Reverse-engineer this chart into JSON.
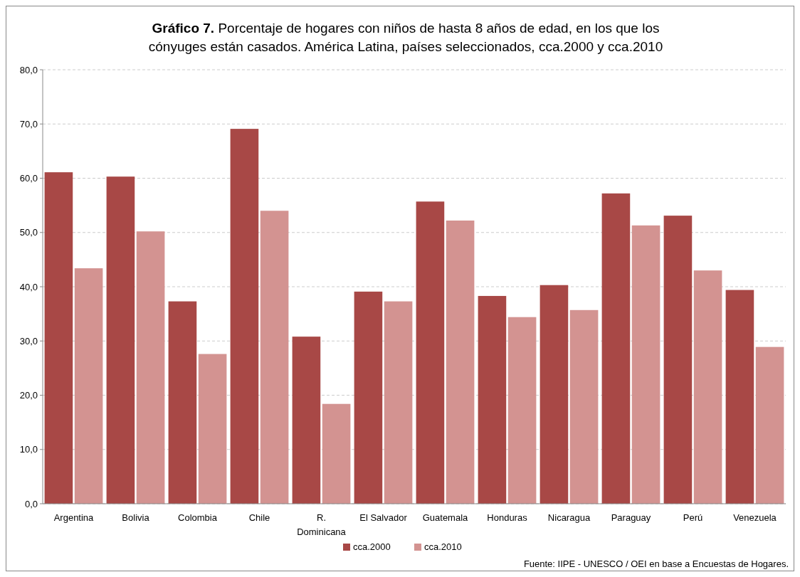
{
  "chart_data": {
    "type": "bar",
    "title": "Gráfico 7. Porcentaje de hogares con niños de hasta 8 años de edad, en los que los cónyuges están casados. América Latina, países seleccionados, cca.2000 y cca.2010",
    "categories": [
      "Argentina",
      "Bolivia",
      "Colombia",
      "Chile",
      "R. Dominicana",
      "El Salvador",
      "Guatemala",
      "Honduras",
      "Nicaragua",
      "Paraguay",
      "Perú",
      "Venezuela"
    ],
    "series": [
      {
        "name": "cca.2000",
        "color": "#a84846",
        "values": [
          61.1,
          60.3,
          37.3,
          69.1,
          30.8,
          39.1,
          55.7,
          38.3,
          40.3,
          57.2,
          53.1,
          39.4
        ]
      },
      {
        "name": "cca.2010",
        "color": "#d39391",
        "values": [
          43.4,
          50.2,
          27.6,
          54.0,
          18.4,
          37.3,
          52.2,
          34.4,
          35.7,
          51.3,
          43.0,
          28.9
        ]
      }
    ],
    "ylim": [
      0,
      80
    ],
    "yticks": [
      {
        "value": 0,
        "label": "0,0"
      },
      {
        "value": 10,
        "label": "10,0"
      },
      {
        "value": 20,
        "label": "20,0"
      },
      {
        "value": 30,
        "label": "30,0"
      },
      {
        "value": 40,
        "label": "40,0"
      },
      {
        "value": 50,
        "label": "50,0"
      },
      {
        "value": 60,
        "label": "60,0"
      },
      {
        "value": 70,
        "label": "70,0"
      },
      {
        "value": 80,
        "label": "80,0"
      }
    ],
    "grid": "y",
    "legend": "bottom",
    "annotations": [
      "Fuente: IIPE - UNESCO / OEI en base a Encuestas de Hogares."
    ]
  }
}
